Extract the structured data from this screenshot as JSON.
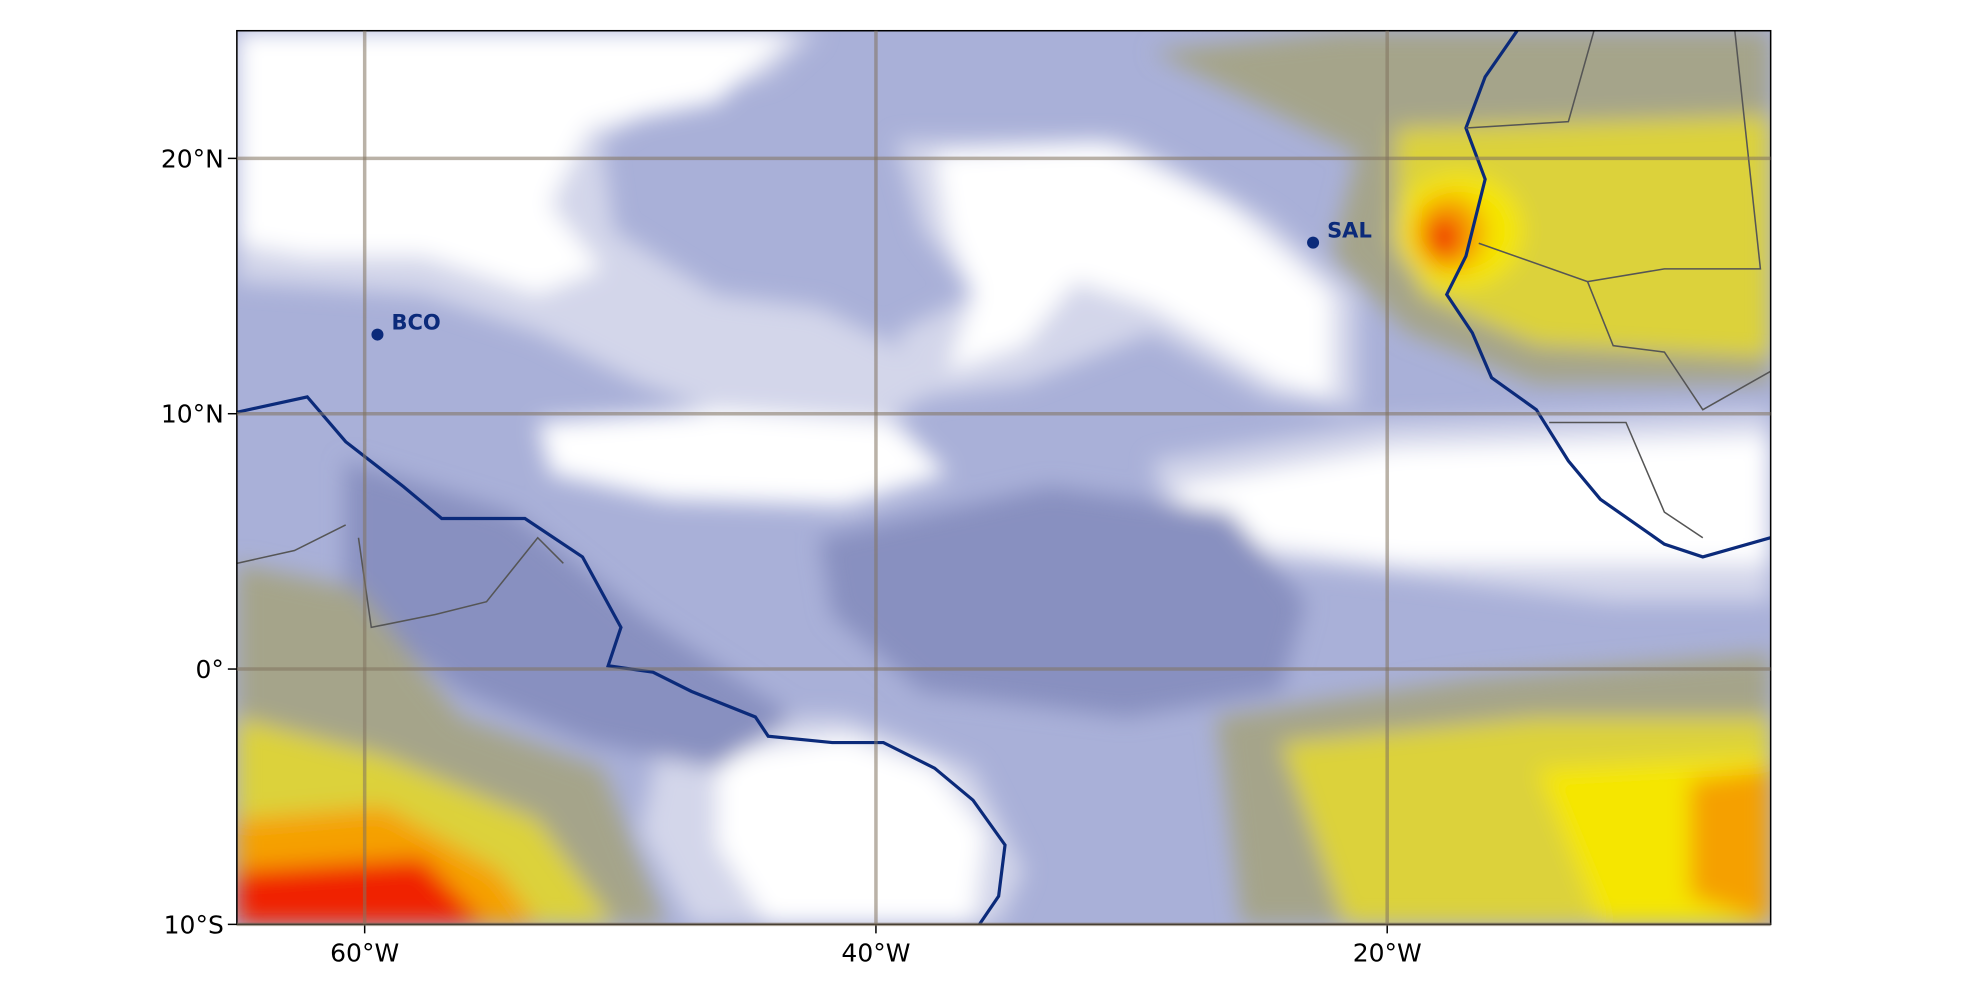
{
  "chart_data": {
    "type": "map",
    "xlim": [
      -65,
      -5
    ],
    "ylim": [
      -10,
      25
    ],
    "xticks": [
      {
        "value": -60,
        "label": "60°W"
      },
      {
        "value": -40,
        "label": "40°W"
      },
      {
        "value": -20,
        "label": "20°W"
      }
    ],
    "yticks": [
      {
        "value": 20,
        "label": "20°N"
      },
      {
        "value": 10,
        "label": "10°N"
      },
      {
        "value": 0,
        "label": "0°"
      },
      {
        "value": -10,
        "label": "10°S"
      }
    ],
    "grid": true,
    "stations": [
      {
        "name": "BCO",
        "lon": -59.5,
        "lat": 13.1,
        "color": "#0b2a7a"
      },
      {
        "name": "SAL",
        "lon": -22.9,
        "lat": 16.7,
        "color": "#0b2a7a"
      }
    ]
  }
}
